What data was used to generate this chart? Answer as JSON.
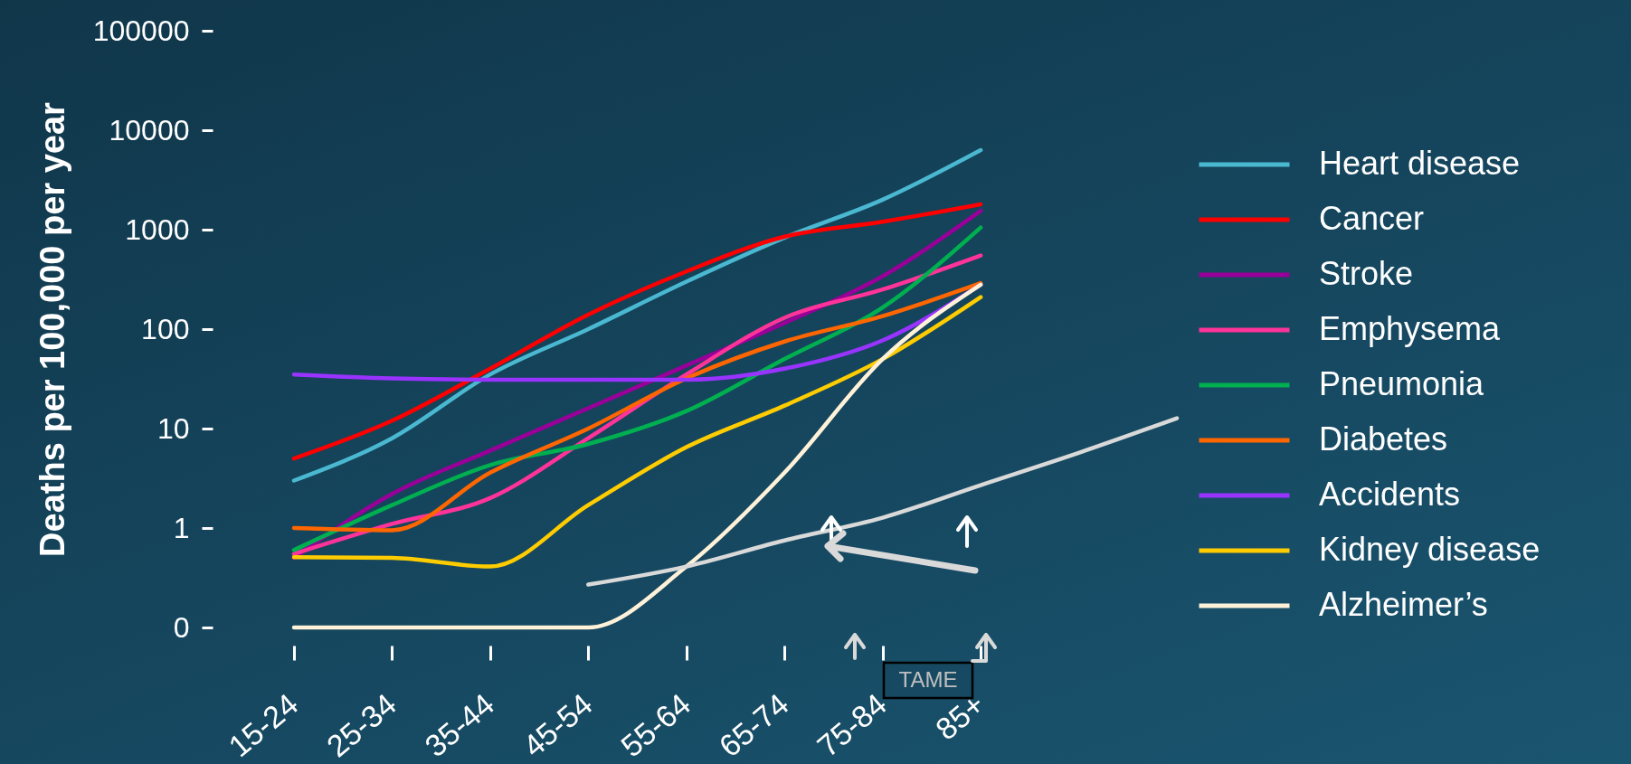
{
  "chart_data": {
    "type": "line",
    "ylabel": "Deaths per 100,000 per year",
    "log": true,
    "legend": "right",
    "categories": [
      "15-24",
      "25-34",
      "35-44",
      "45-54",
      "55-64",
      "65-74",
      "75-84",
      "85+",
      null,
      null
    ],
    "ylim": [
      0.1,
      100000
    ],
    "yticks": [
      {
        "value": 0.1,
        "label": "0"
      },
      1,
      10,
      100,
      1000,
      10000,
      100000
    ],
    "annotations": [
      "TAME"
    ],
    "series": [
      {
        "name": "Heart disease",
        "color": "#4ab8d0",
        "values": [
          3,
          8,
          35,
          100,
          300,
          830,
          2000,
          6300,
          null,
          null
        ]
      },
      {
        "name": "Cancer",
        "color": "#ff0000",
        "values": [
          5,
          12,
          40,
          140,
          380,
          850,
          1200,
          1800,
          null,
          null
        ]
      },
      {
        "name": "Stroke",
        "color": "#990099",
        "values": [
          0.5,
          2.2,
          6,
          16,
          43,
          115,
          340,
          1550,
          null,
          null
        ]
      },
      {
        "name": "Emphysema",
        "color": "#ff3399",
        "values": [
          0.55,
          1.1,
          2,
          8,
          35,
          130,
          250,
          550,
          null,
          null
        ]
      },
      {
        "name": "Pneumonia",
        "color": "#00b050",
        "values": [
          0.6,
          1.7,
          4.3,
          7,
          15,
          50,
          165,
          1050,
          null,
          null
        ]
      },
      {
        "name": "Diabetes",
        "color": "#ff6600",
        "values": [
          1,
          0.95,
          3.6,
          10,
          32,
          75,
          135,
          290,
          null,
          null
        ]
      },
      {
        "name": "Accidents",
        "color": "#9933ff",
        "values": [
          35,
          32,
          31,
          31,
          31,
          40,
          77,
          280,
          null,
          null
        ]
      },
      {
        "name": "Kidney disease",
        "color": "#ffcc00",
        "values": [
          0.51,
          0.5,
          0.41,
          1.7,
          6.5,
          17,
          50,
          210,
          null,
          null
        ]
      },
      {
        "name": "Alzheimer’s",
        "color": "#fff2d9",
        "values": [
          0.1,
          0.1,
          0.1,
          0.1,
          0.41,
          3.6,
          50,
          280,
          null,
          null
        ]
      },
      {
        "color": "#d9d9d9",
        "values": [
          null,
          null,
          null,
          0.27,
          0.41,
          0.75,
          1.27,
          2.7,
          5.7,
          12.7
        ]
      }
    ]
  }
}
